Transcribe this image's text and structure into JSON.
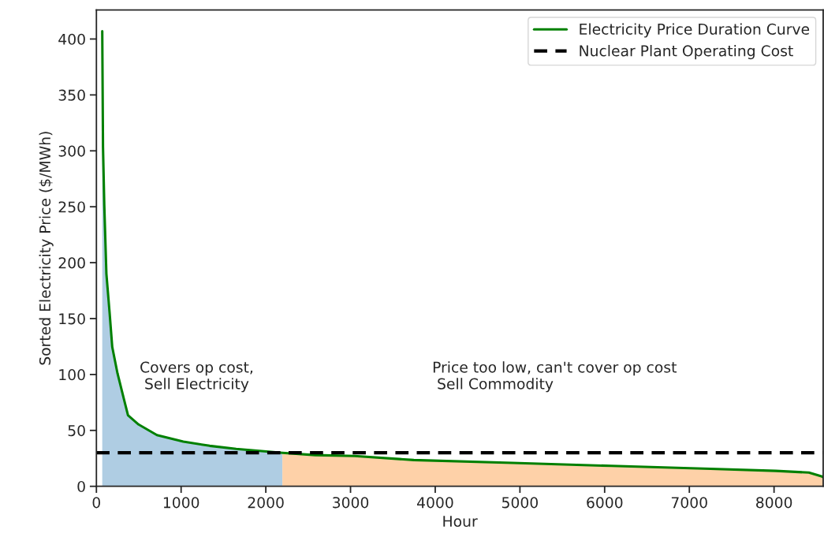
{
  "chart_data": {
    "type": "line",
    "xlabel": "Hour",
    "ylabel": "Sorted Electricity Price ($/MWh)",
    "xlim": [
      0,
      8580
    ],
    "ylim": [
      0,
      426
    ],
    "xticks": [
      0,
      1000,
      2000,
      3000,
      4000,
      5000,
      6000,
      7000,
      8000
    ],
    "yticks": [
      0,
      50,
      100,
      150,
      200,
      250,
      300,
      350,
      400
    ],
    "grid": false,
    "legend": "top right",
    "series": [
      {
        "type": "area",
        "color": "#afcde3",
        "x": [
          69,
          78,
          93,
          118,
          156,
          187,
          249,
          326,
          373,
          498,
          715,
          1026,
          1338,
          1650,
          2196
        ],
        "values": [
          407,
          303,
          251.5,
          190,
          155,
          124.6,
          101,
          77.6,
          63.5,
          55.3,
          45.8,
          40,
          36.2,
          33.4,
          29.9
        ]
      },
      {
        "type": "area",
        "color": "#fed1a8",
        "x": [
          2196,
          2581,
          3048,
          3747,
          4913,
          6079,
          7248,
          8022,
          8411,
          8567,
          8580
        ],
        "values": [
          29.9,
          27.9,
          27.1,
          23.5,
          20.9,
          18.3,
          15.6,
          13.8,
          12.3,
          8.8,
          8
        ]
      },
      {
        "name": "Electricity Price Duration Curve",
        "color": "#008000",
        "x": [
          69,
          78,
          93,
          118,
          156,
          187,
          249,
          326,
          373,
          498,
          715,
          1026,
          1338,
          1650,
          2196,
          2581,
          3048,
          3747,
          4913,
          6079,
          7248,
          8022,
          8411,
          8567,
          8580
        ],
        "values": [
          407,
          303,
          251.5,
          190,
          155,
          124.6,
          101,
          77.6,
          63.5,
          55.3,
          45.8,
          40,
          36.2,
          33.4,
          29.9,
          27.9,
          27.1,
          23.5,
          20.9,
          18.3,
          15.6,
          13.8,
          12.3,
          8.8,
          8
        ]
      }
    ],
    "ref_lines": [
      {
        "axis": "y",
        "value": 30,
        "label": "Nuclear Plant Operating Cost",
        "color": "#000000",
        "line_style": "dashed"
      }
    ],
    "annotations": [
      "Covers op cost,\nSell Electricity",
      "Price too low, can't cover op cost\n Sell Commodity"
    ]
  }
}
